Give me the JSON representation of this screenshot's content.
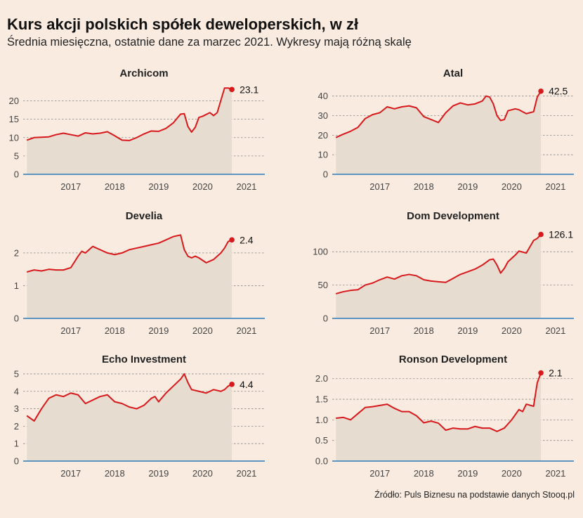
{
  "title": "Kurs akcji polskich spółek deweloperskich, w zł",
  "subtitle": "Średnia miesięczna, ostatnie dane za marzec 2021. Wykresy mają różną skalę",
  "source": "Źródło: Puls Biznesu na podstawie danych Stooq.pl",
  "colors": {
    "line": "#d7191c",
    "area": "#e6dcd0",
    "baseline": "#2b7bb9",
    "grid": "#888888",
    "background": "#f9ebe0"
  },
  "chart_data": [
    {
      "type": "area",
      "title": "Archicom",
      "x_tick_labels": [
        "2017",
        "2018",
        "2019",
        "2020",
        "2021"
      ],
      "y_ticks": [
        0,
        5,
        10,
        15,
        20
      ],
      "y_tick_labels": [
        "0",
        "5",
        "10",
        "15",
        "20"
      ],
      "ylim": [
        0,
        24.5
      ],
      "xlim": [
        "2016-06",
        "2021-12"
      ],
      "grid": true,
      "end_label": "23.1",
      "x": [
        "2016-07",
        "2016-09",
        "2016-11",
        "2017-01",
        "2017-03",
        "2017-05",
        "2017-07",
        "2017-09",
        "2017-11",
        "2018-01",
        "2018-03",
        "2018-05",
        "2018-07",
        "2018-09",
        "2018-11",
        "2019-01",
        "2019-03",
        "2019-05",
        "2019-07",
        "2019-09",
        "2019-11",
        "2020-01",
        "2020-02",
        "2020-03",
        "2020-04",
        "2020-05",
        "2020-06",
        "2020-07",
        "2020-09",
        "2020-10",
        "2020-11",
        "2021-01",
        "2021-02",
        "2021-03"
      ],
      "y": [
        9.3,
        10.0,
        10.1,
        10.2,
        10.8,
        11.2,
        10.8,
        10.4,
        11.3,
        11.0,
        11.2,
        11.6,
        10.5,
        9.3,
        9.2,
        10.0,
        11.0,
        11.8,
        11.7,
        12.5,
        14.0,
        16.4,
        16.5,
        13.0,
        11.5,
        12.8,
        15.5,
        15.8,
        16.8,
        16.0,
        16.8,
        23.5,
        23.5,
        23.1
      ]
    },
    {
      "type": "area",
      "title": "Atal",
      "x_tick_labels": [
        "2017",
        "2018",
        "2019",
        "2020",
        "2021"
      ],
      "y_ticks": [
        0,
        10,
        20,
        30,
        40
      ],
      "y_tick_labels": [
        "0",
        "10",
        "20",
        "30",
        "40"
      ],
      "ylim": [
        0,
        46
      ],
      "xlim": [
        "2016-06",
        "2021-12"
      ],
      "grid": true,
      "end_label": "42.5",
      "x": [
        "2016-07",
        "2016-09",
        "2016-11",
        "2017-01",
        "2017-03",
        "2017-05",
        "2017-07",
        "2017-09",
        "2017-11",
        "2018-01",
        "2018-03",
        "2018-05",
        "2018-07",
        "2018-09",
        "2018-11",
        "2019-01",
        "2019-03",
        "2019-05",
        "2019-07",
        "2019-09",
        "2019-11",
        "2019-12",
        "2020-01",
        "2020-02",
        "2020-03",
        "2020-04",
        "2020-05",
        "2020-06",
        "2020-08",
        "2020-09",
        "2020-11",
        "2021-01",
        "2021-02",
        "2021-03"
      ],
      "y": [
        18.8,
        20.5,
        22.0,
        24.0,
        28.5,
        30.5,
        31.5,
        34.5,
        33.5,
        34.5,
        35.0,
        34.0,
        29.5,
        28.0,
        26.5,
        31.5,
        35.0,
        36.5,
        35.5,
        36.0,
        37.5,
        40.0,
        39.5,
        36.0,
        30.0,
        27.5,
        28.0,
        32.5,
        33.5,
        33.0,
        31.0,
        32.0,
        39.5,
        42.5
      ]
    },
    {
      "type": "area",
      "title": "Develia",
      "x_tick_labels": [
        "2017",
        "2018",
        "2019",
        "2020",
        "2021"
      ],
      "y_ticks": [
        0,
        1,
        2
      ],
      "y_tick_labels": [
        "0",
        "1",
        "2"
      ],
      "ylim": [
        0,
        2.75
      ],
      "xlim": [
        "2016-06",
        "2021-12"
      ],
      "grid": true,
      "end_label": "2.4",
      "x": [
        "2016-07",
        "2016-09",
        "2016-11",
        "2017-01",
        "2017-03",
        "2017-05",
        "2017-07",
        "2017-09",
        "2017-10",
        "2017-11",
        "2017-12",
        "2018-01",
        "2018-03",
        "2018-05",
        "2018-07",
        "2018-09",
        "2018-11",
        "2019-01",
        "2019-03",
        "2019-05",
        "2019-07",
        "2019-09",
        "2019-11",
        "2020-01",
        "2020-02",
        "2020-03",
        "2020-04",
        "2020-05",
        "2020-06",
        "2020-08",
        "2020-10",
        "2020-12",
        "2021-01",
        "2021-02",
        "2021-03"
      ],
      "y": [
        1.42,
        1.48,
        1.45,
        1.5,
        1.48,
        1.48,
        1.55,
        1.9,
        2.05,
        2.0,
        2.1,
        2.2,
        2.1,
        2.0,
        1.95,
        2.0,
        2.1,
        2.15,
        2.2,
        2.25,
        2.3,
        2.4,
        2.5,
        2.55,
        2.1,
        1.9,
        1.85,
        1.9,
        1.85,
        1.7,
        1.8,
        2.0,
        2.15,
        2.35,
        2.4
      ]
    },
    {
      "type": "area",
      "title": "Dom Development",
      "x_tick_labels": [
        "2017",
        "2018",
        "2019",
        "2020",
        "2021"
      ],
      "y_ticks": [
        0,
        50,
        100
      ],
      "y_tick_labels": [
        "0",
        "50",
        "100"
      ],
      "ylim": [
        0,
        135
      ],
      "xlim": [
        "2016-06",
        "2021-12"
      ],
      "grid": true,
      "end_label": "126.1",
      "x": [
        "2016-07",
        "2016-09",
        "2016-11",
        "2017-01",
        "2017-03",
        "2017-05",
        "2017-07",
        "2017-09",
        "2017-11",
        "2018-01",
        "2018-03",
        "2018-05",
        "2018-07",
        "2018-09",
        "2018-11",
        "2019-01",
        "2019-03",
        "2019-05",
        "2019-07",
        "2019-09",
        "2019-11",
        "2020-01",
        "2020-02",
        "2020-03",
        "2020-04",
        "2020-05",
        "2020-06",
        "2020-08",
        "2020-09",
        "2020-11",
        "2021-01",
        "2021-02",
        "2021-03"
      ],
      "y": [
        37,
        40,
        42,
        43,
        50,
        53,
        58,
        62,
        59,
        64,
        66,
        64,
        58,
        56,
        55,
        54,
        60,
        66,
        70,
        74,
        80,
        88,
        89,
        80,
        68,
        75,
        85,
        95,
        101,
        98,
        117,
        120,
        126
      ]
    },
    {
      "type": "area",
      "title": "Echo Investment",
      "x_tick_labels": [
        "2017",
        "2018",
        "2019",
        "2020",
        "2021"
      ],
      "y_ticks": [
        0,
        1,
        2,
        3,
        4,
        5
      ],
      "y_tick_labels": [
        "0",
        "1",
        "2",
        "3",
        "4",
        "5"
      ],
      "ylim": [
        0,
        5.2
      ],
      "xlim": [
        "2016-06",
        "2021-12"
      ],
      "grid": true,
      "end_label": "4.4",
      "x": [
        "2016-07",
        "2016-09",
        "2016-11",
        "2017-01",
        "2017-03",
        "2017-05",
        "2017-07",
        "2017-09",
        "2017-11",
        "2018-01",
        "2018-03",
        "2018-05",
        "2018-07",
        "2018-09",
        "2018-11",
        "2019-01",
        "2019-03",
        "2019-05",
        "2019-06",
        "2019-07",
        "2019-09",
        "2019-11",
        "2020-01",
        "2020-02",
        "2020-03",
        "2020-04",
        "2020-06",
        "2020-08",
        "2020-10",
        "2020-12",
        "2021-01",
        "2021-02",
        "2021-03"
      ],
      "y": [
        2.6,
        2.3,
        3.0,
        3.6,
        3.8,
        3.7,
        3.9,
        3.8,
        3.3,
        3.5,
        3.7,
        3.8,
        3.4,
        3.3,
        3.1,
        3.0,
        3.2,
        3.6,
        3.7,
        3.4,
        3.9,
        4.3,
        4.7,
        5.0,
        4.5,
        4.1,
        4.0,
        3.9,
        4.1,
        4.0,
        4.1,
        4.3,
        4.4
      ]
    },
    {
      "type": "area",
      "title": "Ronson Development",
      "x_tick_labels": [
        "2017",
        "2018",
        "2019",
        "2020",
        "2021"
      ],
      "y_ticks": [
        0.0,
        0.5,
        1.0,
        1.5,
        2.0
      ],
      "y_tick_labels": [
        "0.0",
        "0.5",
        "1.0",
        "1.5",
        "2.0"
      ],
      "ylim": [
        0,
        2.2
      ],
      "xlim": [
        "2016-06",
        "2021-12"
      ],
      "grid": true,
      "end_label": "2.1",
      "x": [
        "2016-07",
        "2016-09",
        "2016-11",
        "2017-01",
        "2017-03",
        "2017-05",
        "2017-07",
        "2017-09",
        "2017-11",
        "2018-01",
        "2018-03",
        "2018-05",
        "2018-07",
        "2018-09",
        "2018-11",
        "2019-01",
        "2019-03",
        "2019-05",
        "2019-07",
        "2019-09",
        "2019-11",
        "2020-01",
        "2020-03",
        "2020-05",
        "2020-07",
        "2020-09",
        "2020-10",
        "2020-11",
        "2021-01",
        "2021-02",
        "2021-03"
      ],
      "y": [
        1.04,
        1.06,
        1.0,
        1.15,
        1.3,
        1.32,
        1.35,
        1.38,
        1.28,
        1.2,
        1.2,
        1.1,
        0.93,
        0.97,
        0.92,
        0.75,
        0.8,
        0.78,
        0.78,
        0.84,
        0.8,
        0.8,
        0.72,
        0.8,
        1.0,
        1.25,
        1.2,
        1.38,
        1.33,
        1.9,
        2.14
      ]
    }
  ]
}
